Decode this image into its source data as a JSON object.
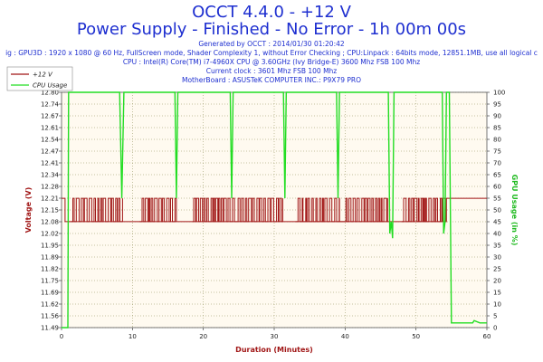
{
  "chart_data": {
    "type": "line",
    "title": "OCCT 4.4.0 - +12 V",
    "subtitle": "Power Supply - Finished - No Error - 1h 00m 00s",
    "info_lines": [
      "Generated by OCCT : 2014/01/30 01:20:42",
      "ig : GPU3D : 1920 x 1080 @ 60 Hz, FullScreen mode, Shader Complexity 1, without Error Checking ; CPU:Linpack : 64bits mode, 12851.1MB, use all logical c",
      "CPU : Intel(R) Core(TM) i7-4960X CPU @ 3.60GHz (Ivy Bridge-E) 3600 Mhz FSB 100 Mhz",
      "Current clock : 3601 Mhz FSB 100 Mhz",
      "MotherBoard : ASUSTeK COMPUTER INC.: P9X79 PRO"
    ],
    "xlabel": "Duration (Minutes)",
    "ylabel_left": "Voltage (V)",
    "ylabel_right": "GPU Usage (in %)",
    "xlim": [
      0,
      60
    ],
    "ylim_left": [
      11.49,
      12.8
    ],
    "ylim_right": [
      0,
      100
    ],
    "x_ticks": [
      0,
      10,
      20,
      30,
      40,
      50,
      60
    ],
    "y_left_ticks": [
      "11.49",
      "11.56",
      "11.62",
      "11.69",
      "11.75",
      "11.82",
      "11.89",
      "11.95",
      "12.02",
      "12.08",
      "12.15",
      "12.21",
      "12.28",
      "12.34",
      "12.41",
      "12.47",
      "12.54",
      "12.61",
      "12.67",
      "12.74",
      "12.80"
    ],
    "y_right_ticks": [
      0,
      5,
      10,
      15,
      20,
      25,
      30,
      35,
      40,
      45,
      50,
      55,
      60,
      65,
      70,
      75,
      80,
      85,
      90,
      95,
      100
    ],
    "grid": true,
    "legend_placement": "top-left",
    "series": [
      {
        "name": "+12 V",
        "color": "#a01515",
        "axis": "left",
        "baseline_low": 12.08,
        "baseline_high": 12.21,
        "noise_intervals": [
          [
            1.3,
            8.6
          ],
          [
            11.0,
            16.2
          ],
          [
            18.5,
            24.4
          ],
          [
            24.8,
            31.2
          ],
          [
            33.0,
            39.2
          ],
          [
            40.0,
            46.0
          ],
          [
            48.0,
            54.2
          ]
        ],
        "points": [
          [
            0,
            12.21
          ],
          [
            0.5,
            12.21
          ],
          [
            0.5,
            12.08
          ],
          [
            1.3,
            12.08
          ],
          [
            54.3,
            12.08
          ],
          [
            54.3,
            12.21
          ],
          [
            60,
            12.21
          ]
        ]
      },
      {
        "name": "CPU Usage",
        "color": "#22dd22",
        "axis": "right",
        "points": [
          [
            0,
            0
          ],
          [
            0.9,
            0
          ],
          [
            1.0,
            100
          ],
          [
            8.2,
            100
          ],
          [
            8.5,
            55
          ],
          [
            8.8,
            100
          ],
          [
            16.0,
            100
          ],
          [
            16.2,
            55
          ],
          [
            16.4,
            100
          ],
          [
            23.8,
            100
          ],
          [
            24.0,
            55
          ],
          [
            24.2,
            100
          ],
          [
            31.3,
            100
          ],
          [
            31.5,
            55
          ],
          [
            31.7,
            100
          ],
          [
            38.8,
            100
          ],
          [
            39.0,
            55
          ],
          [
            39.2,
            100
          ],
          [
            46.1,
            100
          ],
          [
            46.3,
            40
          ],
          [
            46.5,
            45
          ],
          [
            46.7,
            38
          ],
          [
            46.9,
            100
          ],
          [
            53.7,
            100
          ],
          [
            53.9,
            40
          ],
          [
            54.1,
            45
          ],
          [
            54.3,
            100
          ],
          [
            54.7,
            100
          ],
          [
            55.0,
            2
          ],
          [
            58.0,
            2
          ],
          [
            58.2,
            3
          ],
          [
            59.0,
            2
          ],
          [
            60,
            2
          ]
        ]
      }
    ]
  }
}
